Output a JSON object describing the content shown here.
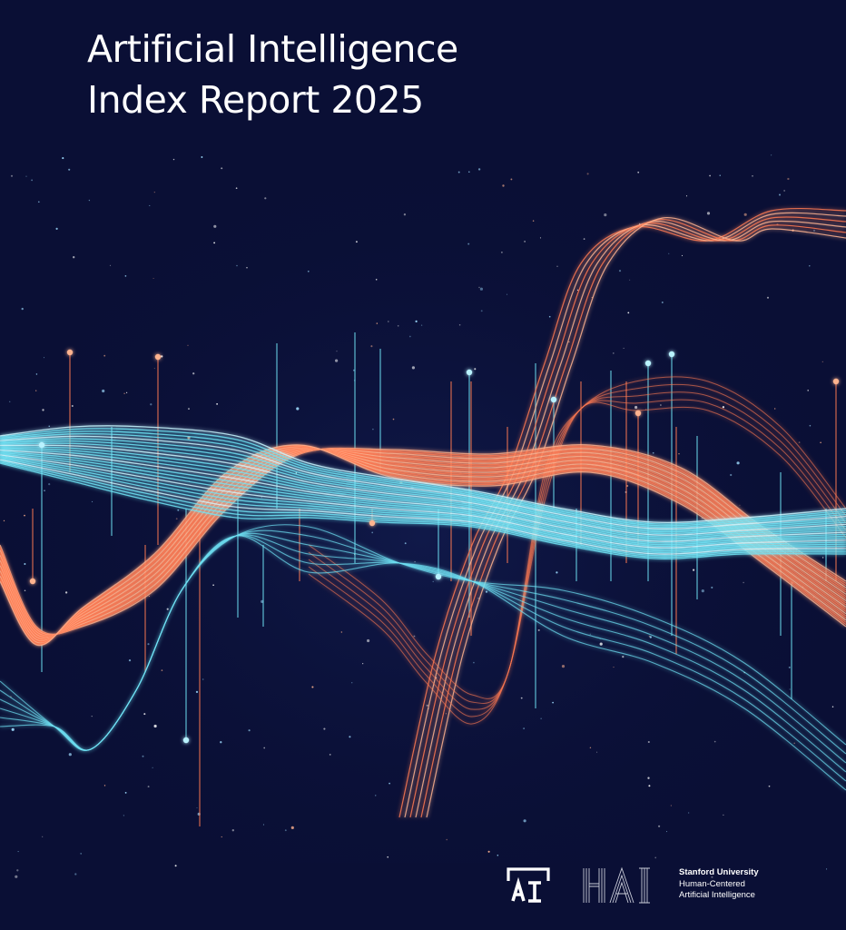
{
  "cover": {
    "title_line1": "Artificial Intelligence",
    "title_line2": "Index Report 2025",
    "background_color": "#0a0f35",
    "wave_colors": {
      "cyan": "#6fe3f5",
      "orange": "#ff7a52",
      "peach": "#ffb38f"
    }
  },
  "logos": {
    "ai_index_icon": "ai-index-logo-icon",
    "hai_wordmark": "hai-wordmark-icon",
    "university": "Stanford University",
    "line2": "Human-Centered",
    "line3": "Artificial Intelligence"
  }
}
